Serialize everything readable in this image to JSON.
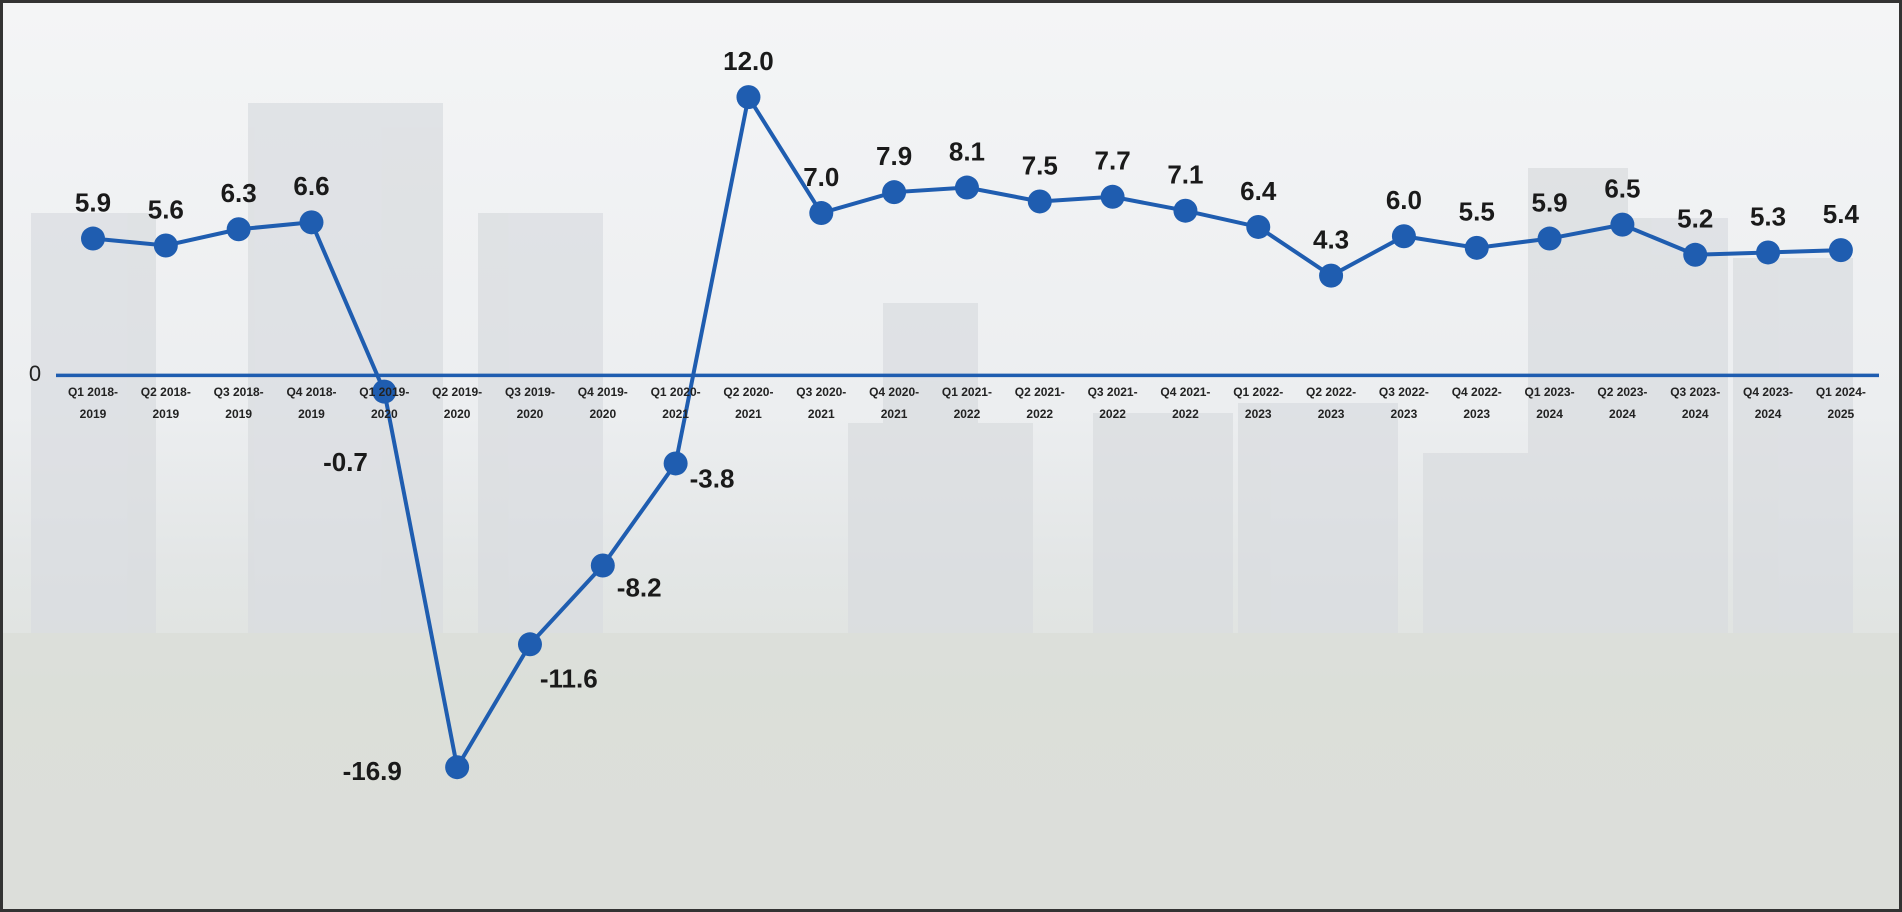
{
  "chart_data": {
    "type": "line",
    "categories": [
      "Q1 2018-2019",
      "Q2 2018-2019",
      "Q3 2018-2019",
      "Q4 2018-2019",
      "Q1 2019-2020",
      "Q2 2019-2020",
      "Q3 2019-2020",
      "Q4 2019-2020",
      "Q1 2020-2021",
      "Q2 2020-2021",
      "Q3 2020-2021",
      "Q4 2020-2021",
      "Q1 2021-2022",
      "Q2 2021-2022",
      "Q3 2021-2022",
      "Q4 2021-2022",
      "Q1 2022-2023",
      "Q2 2022-2023",
      "Q3 2022-2023",
      "Q4 2022-2023",
      "Q1 2023-2024",
      "Q2 2023-2024",
      "Q3 2023-2024",
      "Q4 2023-2024",
      "Q1 2024-2025"
    ],
    "values": [
      5.9,
      5.6,
      6.3,
      6.6,
      -0.7,
      -16.9,
      -11.6,
      -8.2,
      -3.8,
      12.0,
      7.0,
      7.9,
      8.1,
      7.5,
      7.7,
      7.1,
      6.4,
      4.3,
      6.0,
      5.5,
      5.9,
      6.5,
      5.2,
      5.3,
      5.4
    ],
    "value_labels": [
      "5.9",
      "5.6",
      "6.3",
      "6.6",
      "-0.7",
      "-16.9",
      "-11.6",
      "-8.2",
      "-3.8",
      "12.0",
      "7.0",
      "7.9",
      "8.1",
      "7.5",
      "7.7",
      "7.1",
      "6.4",
      "4.3",
      "6.0",
      "5.5",
      "5.9",
      "6.5",
      "5.2",
      "5.3",
      "5.4"
    ],
    "color": "#1f5db0",
    "ylim": [
      -22.8,
      15.8
    ],
    "yticks": [
      0
    ]
  }
}
